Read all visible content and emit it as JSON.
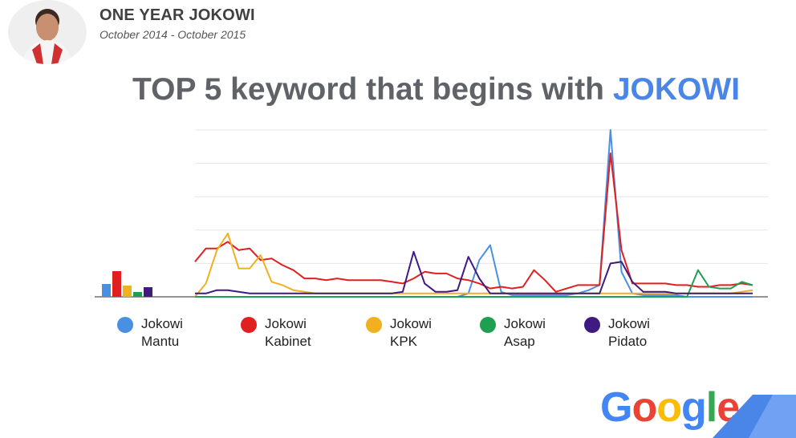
{
  "header": {
    "title": "ONE YEAR JOKOWI",
    "subtitle": "October 2014 - October 2015"
  },
  "chart_title": {
    "main": "TOP 5 keyword that begins with ",
    "highlight": "JOKOWI"
  },
  "legend": [
    {
      "line1": "Jokowi",
      "line2": "Mantu",
      "color": "#4a90e2"
    },
    {
      "line1": "Jokowi",
      "line2": "Kabinet",
      "color": "#e02020"
    },
    {
      "line1": "Jokowi",
      "line2": "KPK",
      "color": "#f0b020"
    },
    {
      "line1": "Jokowi",
      "line2": "Asap",
      "color": "#1ea050"
    },
    {
      "line1": "Jokowi",
      "line2": "Pidato",
      "color": "#3f1a80"
    }
  ],
  "logo": {
    "letters": [
      {
        "ch": "G",
        "color": "#4285f4"
      },
      {
        "ch": "o",
        "color": "#ea4335"
      },
      {
        "ch": "o",
        "color": "#fbbc05"
      },
      {
        "ch": "g",
        "color": "#4285f4"
      },
      {
        "ch": "l",
        "color": "#34a853"
      },
      {
        "ch": "e",
        "color": "#ea4335"
      }
    ]
  },
  "chart_data": {
    "type": "line",
    "x_count": 52,
    "ylim": [
      0,
      100
    ],
    "grid": true,
    "legend_position": "bottom",
    "summary_bars": [
      8,
      16,
      7,
      3,
      6
    ],
    "series": [
      {
        "name": "Jokowi Mantu",
        "color": "#4a90e2",
        "values": [
          0,
          0,
          0,
          0,
          0,
          0,
          0,
          0,
          0,
          0,
          0,
          0,
          0,
          0,
          0,
          0,
          0,
          0,
          0,
          0,
          0,
          0,
          0,
          0,
          0,
          2,
          22,
          31,
          3,
          1,
          1,
          1,
          1,
          1,
          1,
          2,
          4,
          7,
          100,
          15,
          2,
          1,
          1,
          1,
          1,
          0,
          0,
          0,
          0,
          0,
          0,
          0
        ]
      },
      {
        "name": "Jokowi Kabinet",
        "color": "#e02020",
        "values": [
          21,
          29,
          29,
          33,
          28,
          29,
          22,
          23,
          19,
          16,
          11,
          11,
          10,
          11,
          10,
          10,
          10,
          10,
          9,
          8,
          11,
          15,
          14,
          14,
          11,
          10,
          8,
          5,
          6,
          5,
          6,
          16,
          10,
          3,
          5,
          7,
          7,
          7,
          86,
          28,
          8,
          8,
          8,
          8,
          7,
          7,
          6,
          6,
          7,
          7,
          8,
          7
        ]
      },
      {
        "name": "Jokowi KPK",
        "color": "#f0b020",
        "values": [
          0,
          8,
          28,
          38,
          17,
          17,
          25,
          9,
          7,
          4,
          3,
          2,
          2,
          2,
          2,
          2,
          2,
          2,
          2,
          2,
          2,
          2,
          2,
          2,
          2,
          2,
          2,
          2,
          2,
          2,
          2,
          2,
          2,
          2,
          2,
          2,
          2,
          2,
          2,
          2,
          2,
          2,
          2,
          2,
          2,
          2,
          2,
          2,
          2,
          2,
          3,
          4
        ]
      },
      {
        "name": "Jokowi Asap",
        "color": "#1ea050",
        "values": [
          0,
          0,
          0,
          0,
          0,
          0,
          0,
          0,
          0,
          0,
          0,
          0,
          0,
          0,
          0,
          0,
          0,
          0,
          0,
          0,
          0,
          0,
          0,
          0,
          0,
          0,
          0,
          0,
          0,
          0,
          0,
          0,
          0,
          0,
          0,
          0,
          0,
          0,
          0,
          0,
          0,
          0,
          0,
          0,
          0,
          0,
          16,
          6,
          5,
          5,
          9,
          7
        ]
      },
      {
        "name": "Jokowi Pidato",
        "color": "#3f1a80",
        "values": [
          2,
          2,
          4,
          4,
          3,
          2,
          2,
          2,
          2,
          2,
          2,
          2,
          2,
          2,
          2,
          2,
          2,
          2,
          2,
          3,
          27,
          8,
          3,
          3,
          4,
          24,
          11,
          2,
          2,
          2,
          2,
          2,
          2,
          2,
          2,
          2,
          2,
          2,
          20,
          21,
          9,
          3,
          3,
          3,
          2,
          2,
          2,
          2,
          2,
          2,
          2,
          2
        ]
      }
    ]
  }
}
